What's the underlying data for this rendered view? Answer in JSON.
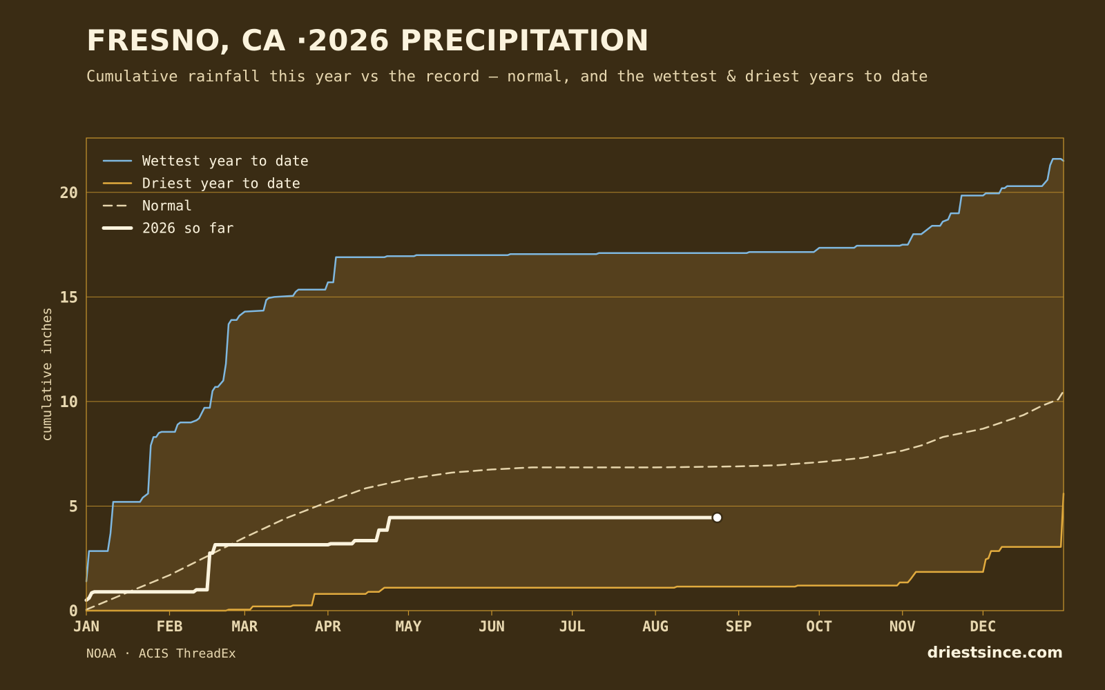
{
  "header": {
    "title": "FRESNO, CA ·2026 PRECIPITATION",
    "subtitle": "Cumulative rainfall this year vs the record — normal, and the wettest & driest years to date"
  },
  "footer": {
    "source": "NOAA · ACIS ThreadEx",
    "site": "driestsince.com"
  },
  "colors": {
    "background": "#3a2c14",
    "band": "#55401d",
    "frame": "#c9962e",
    "wettest": "#7fb8e0",
    "driest": "#e2ab3e",
    "normal": "#e6d5ac",
    "current": "#fbf3dd",
    "tick": "#e8d8b0"
  },
  "chart_data": {
    "type": "line",
    "ylabel": "cumulative inches",
    "xlabel": "",
    "title": "FRESNO, CA ·2026 PRECIPITATION",
    "xlim": [
      1,
      365
    ],
    "ylim": [
      0,
      22.6
    ],
    "yticks": [
      0,
      5,
      10,
      15,
      20
    ],
    "grid": "horizontal",
    "legend_position": "top-left",
    "x_unit": "day of year",
    "month_ticks": [
      {
        "label": "JAN",
        "day": 1
      },
      {
        "label": "FEB",
        "day": 32
      },
      {
        "label": "MAR",
        "day": 60
      },
      {
        "label": "APR",
        "day": 91
      },
      {
        "label": "MAY",
        "day": 121
      },
      {
        "label": "JUN",
        "day": 152
      },
      {
        "label": "JUL",
        "day": 182
      },
      {
        "label": "AUG",
        "day": 213
      },
      {
        "label": "SEP",
        "day": 244
      },
      {
        "label": "OCT",
        "day": 274
      },
      {
        "label": "NOV",
        "day": 305
      },
      {
        "label": "DEC",
        "day": 335
      }
    ],
    "series": [
      {
        "name": "Wettest year to date",
        "style": "solid",
        "color": "#7fb8e0",
        "points": [
          [
            1,
            1.4
          ],
          [
            2,
            2.85
          ],
          [
            9,
            2.85
          ],
          [
            10,
            3.7
          ],
          [
            11,
            5.2
          ],
          [
            21,
            5.2
          ],
          [
            22,
            5.4
          ],
          [
            24,
            5.6
          ],
          [
            25,
            7.9
          ],
          [
            26,
            8.3
          ],
          [
            27,
            8.3
          ],
          [
            28,
            8.5
          ],
          [
            29,
            8.55
          ],
          [
            34,
            8.55
          ],
          [
            35,
            8.9
          ],
          [
            36,
            9.0
          ],
          [
            40,
            9.0
          ],
          [
            42,
            9.1
          ],
          [
            43,
            9.2
          ],
          [
            45,
            9.7
          ],
          [
            47,
            9.7
          ],
          [
            48,
            10.5
          ],
          [
            49,
            10.7
          ],
          [
            50,
            10.7
          ],
          [
            52,
            11.0
          ],
          [
            53,
            11.8
          ],
          [
            54,
            13.7
          ],
          [
            55,
            13.9
          ],
          [
            57,
            13.9
          ],
          [
            58,
            14.1
          ],
          [
            59,
            14.2
          ],
          [
            60,
            14.3
          ],
          [
            67,
            14.35
          ],
          [
            68,
            14.85
          ],
          [
            69,
            14.95
          ],
          [
            71,
            15.0
          ],
          [
            78,
            15.05
          ],
          [
            79,
            15.25
          ],
          [
            80,
            15.35
          ],
          [
            90,
            15.35
          ],
          [
            91,
            15.7
          ],
          [
            93,
            15.7
          ],
          [
            94,
            16.9
          ],
          [
            112,
            16.9
          ],
          [
            113,
            16.95
          ],
          [
            123,
            16.95
          ],
          [
            124,
            17.0
          ],
          [
            158,
            17.0
          ],
          [
            159,
            17.05
          ],
          [
            191,
            17.05
          ],
          [
            192,
            17.1
          ],
          [
            247,
            17.1
          ],
          [
            248,
            17.15
          ],
          [
            272,
            17.15
          ],
          [
            274,
            17.35
          ],
          [
            287,
            17.35
          ],
          [
            288,
            17.45
          ],
          [
            304,
            17.45
          ],
          [
            305,
            17.5
          ],
          [
            307,
            17.5
          ],
          [
            309,
            18.0
          ],
          [
            312,
            18.0
          ],
          [
            314,
            18.2
          ],
          [
            316,
            18.4
          ],
          [
            319,
            18.4
          ],
          [
            320,
            18.6
          ],
          [
            322,
            18.7
          ],
          [
            323,
            19.0
          ],
          [
            326,
            19.0
          ],
          [
            327,
            19.85
          ],
          [
            335,
            19.85
          ],
          [
            336,
            19.95
          ],
          [
            341,
            19.95
          ],
          [
            342,
            20.2
          ],
          [
            343,
            20.2
          ],
          [
            344,
            20.3
          ],
          [
            357,
            20.3
          ],
          [
            359,
            20.6
          ],
          [
            360,
            21.3
          ],
          [
            361,
            21.6
          ],
          [
            364,
            21.6
          ],
          [
            365,
            21.5
          ]
        ]
      },
      {
        "name": "Driest year to date",
        "style": "solid",
        "color": "#e2ab3e",
        "points": [
          [
            1,
            0
          ],
          [
            53,
            0
          ],
          [
            54,
            0.05
          ],
          [
            62,
            0.05
          ],
          [
            63,
            0.2
          ],
          [
            77,
            0.2
          ],
          [
            78,
            0.25
          ],
          [
            85,
            0.25
          ],
          [
            86,
            0.8
          ],
          [
            105,
            0.8
          ],
          [
            106,
            0.9
          ],
          [
            110,
            0.9
          ],
          [
            112,
            1.1
          ],
          [
            220,
            1.1
          ],
          [
            221,
            1.15
          ],
          [
            265,
            1.15
          ],
          [
            266,
            1.2
          ],
          [
            303,
            1.2
          ],
          [
            304,
            1.35
          ],
          [
            307,
            1.35
          ],
          [
            308,
            1.5
          ],
          [
            310,
            1.85
          ],
          [
            335,
            1.85
          ],
          [
            336,
            2.45
          ],
          [
            337,
            2.5
          ],
          [
            338,
            2.85
          ],
          [
            341,
            2.85
          ],
          [
            342,
            3.05
          ],
          [
            364,
            3.05
          ],
          [
            365,
            5.6
          ]
        ]
      },
      {
        "name": "Normal",
        "style": "dashed",
        "color": "#e6d5ac",
        "points": [
          [
            1,
            0.05
          ],
          [
            15,
            0.8
          ],
          [
            32,
            1.7
          ],
          [
            46,
            2.6
          ],
          [
            60,
            3.5
          ],
          [
            75,
            4.4
          ],
          [
            91,
            5.2
          ],
          [
            105,
            5.85
          ],
          [
            121,
            6.3
          ],
          [
            137,
            6.6
          ],
          [
            152,
            6.75
          ],
          [
            167,
            6.85
          ],
          [
            182,
            6.85
          ],
          [
            213,
            6.85
          ],
          [
            244,
            6.9
          ],
          [
            258,
            6.95
          ],
          [
            274,
            7.1
          ],
          [
            290,
            7.3
          ],
          [
            305,
            7.65
          ],
          [
            312,
            7.9
          ],
          [
            320,
            8.3
          ],
          [
            335,
            8.7
          ],
          [
            342,
            9.0
          ],
          [
            350,
            9.35
          ],
          [
            357,
            9.8
          ],
          [
            363,
            10.1
          ],
          [
            365,
            10.5
          ]
        ]
      },
      {
        "name": "2026 so far",
        "style": "solid-thick",
        "color": "#fbf3dd",
        "marker_last": true,
        "points": [
          [
            1,
            0.5
          ],
          [
            2,
            0.6
          ],
          [
            3,
            0.85
          ],
          [
            4,
            0.9
          ],
          [
            41,
            0.9
          ],
          [
            42,
            1.0
          ],
          [
            46,
            1.0
          ],
          [
            47,
            2.75
          ],
          [
            48,
            2.75
          ],
          [
            49,
            3.15
          ],
          [
            91,
            3.15
          ],
          [
            92,
            3.2
          ],
          [
            100,
            3.2
          ],
          [
            101,
            3.35
          ],
          [
            109,
            3.35
          ],
          [
            110,
            3.85
          ],
          [
            113,
            3.85
          ],
          [
            114,
            4.45
          ],
          [
            236,
            4.45
          ]
        ]
      }
    ]
  }
}
